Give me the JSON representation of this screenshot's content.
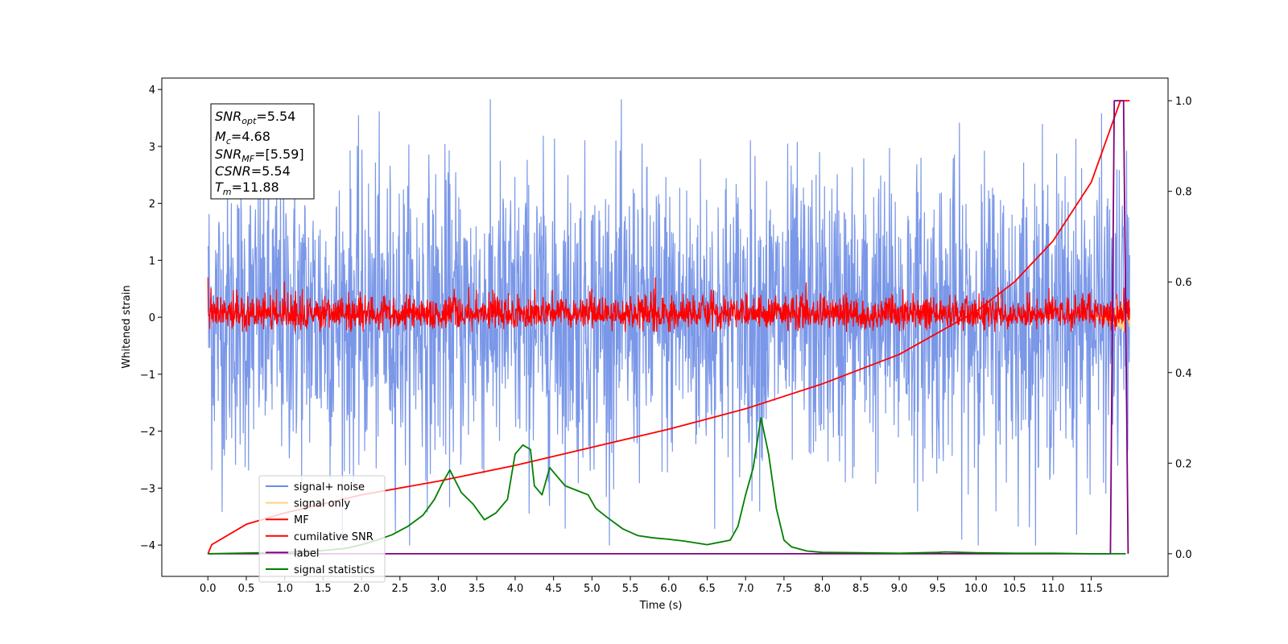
{
  "chart_data": {
    "type": "line",
    "title": "",
    "xlabel": "Time (s)",
    "ylabel": "Whitened strain",
    "xlim": [
      -0.6,
      12.5
    ],
    "ylim": [
      -4.55,
      4.2
    ],
    "y2lim": [
      -0.05,
      1.05
    ],
    "x_ticks": [
      0.0,
      0.5,
      1.0,
      1.5,
      2.0,
      2.5,
      3.0,
      3.5,
      4.0,
      4.5,
      5.0,
      5.5,
      6.0,
      6.5,
      7.0,
      7.5,
      8.0,
      8.5,
      9.0,
      9.5,
      10.0,
      10.5,
      11.0,
      11.5
    ],
    "x_tick_labels": [
      "0.0",
      "0.5",
      "1.0",
      "1.5",
      "2.0",
      "2.5",
      "3.0",
      "3.5",
      "4.0",
      "4.5",
      "5.0",
      "5.5",
      "6.0",
      "6.5",
      "7.0",
      "7.5",
      "8.0",
      "8.5",
      "9.0",
      "9.5",
      "10.0",
      "10.5",
      "11.0",
      "11.5"
    ],
    "y_ticks": [
      -4,
      -3,
      -2,
      -1,
      0,
      1,
      2,
      3,
      4
    ],
    "y_tick_labels": [
      "−4",
      "−3",
      "−2",
      "−1",
      "0",
      "1",
      "2",
      "3",
      "4"
    ],
    "y2_ticks": [
      0.0,
      0.2,
      0.4,
      0.6,
      0.8,
      1.0
    ],
    "y2_tick_labels": [
      "0.0",
      "0.2",
      "0.4",
      "0.6",
      "0.8",
      "1.0"
    ],
    "legend_position": "lower-left",
    "series": [
      {
        "name": "signal+ noise",
        "color": "#6b8ce6",
        "axis": "left",
        "kind": "noise",
        "x_range": [
          0.0,
          12.0
        ],
        "y_range": [
          -4.0,
          3.82
        ],
        "samples": 2400
      },
      {
        "name": "signal only",
        "color": "#ffd27f",
        "axis": "left",
        "kind": "chirp",
        "x_range": [
          11.5,
          12.0
        ],
        "y_range": [
          -0.35,
          0.35
        ]
      },
      {
        "name": "MF",
        "color": "#ff0000",
        "axis": "left",
        "kind": "noise",
        "x_range": [
          0.0,
          12.0
        ],
        "y_range": [
          -0.25,
          0.7
        ],
        "samples": 2400
      },
      {
        "name": "cumilative SNR",
        "color": "#ff0000",
        "axis": "right",
        "kind": "curve",
        "x": [
          0.0,
          0.05,
          0.5,
          1.0,
          1.5,
          2.0,
          3.0,
          4.0,
          5.0,
          6.0,
          7.0,
          8.0,
          9.0,
          10.0,
          10.5,
          11.0,
          11.5,
          11.88,
          12.0
        ],
        "y": [
          0.0,
          0.02,
          0.065,
          0.09,
          0.11,
          0.13,
          0.16,
          0.195,
          0.235,
          0.275,
          0.32,
          0.375,
          0.44,
          0.535,
          0.6,
          0.69,
          0.82,
          1.0,
          1.0
        ]
      },
      {
        "name": "label",
        "color": "#800080",
        "axis": "right",
        "kind": "curve",
        "x": [
          0.0,
          11.75,
          11.8,
          11.85,
          11.92,
          11.98
        ],
        "y": [
          0.0,
          0.0,
          1.0,
          1.0,
          1.0,
          0.0
        ]
      },
      {
        "name": "signal statistics",
        "color": "#008000",
        "axis": "right",
        "kind": "curve",
        "x": [
          0.0,
          1.0,
          1.5,
          1.8,
          2.0,
          2.2,
          2.4,
          2.6,
          2.8,
          2.95,
          3.05,
          3.15,
          3.3,
          3.45,
          3.6,
          3.75,
          3.9,
          4.0,
          4.1,
          4.2,
          4.25,
          4.35,
          4.45,
          4.55,
          4.65,
          4.8,
          4.95,
          5.05,
          5.2,
          5.4,
          5.6,
          5.8,
          6.0,
          6.2,
          6.5,
          6.8,
          6.9,
          7.0,
          7.1,
          7.2,
          7.3,
          7.4,
          7.5,
          7.6,
          7.8,
          8.0,
          8.5,
          9.0,
          9.5,
          9.6,
          10.0,
          10.5,
          11.0,
          11.5,
          11.95
        ],
        "y": [
          0.0,
          0.003,
          0.007,
          0.012,
          0.02,
          0.03,
          0.042,
          0.06,
          0.085,
          0.12,
          0.155,
          0.185,
          0.135,
          0.11,
          0.075,
          0.09,
          0.12,
          0.22,
          0.24,
          0.23,
          0.15,
          0.13,
          0.19,
          0.17,
          0.15,
          0.14,
          0.13,
          0.1,
          0.08,
          0.055,
          0.04,
          0.035,
          0.032,
          0.028,
          0.02,
          0.03,
          0.06,
          0.13,
          0.19,
          0.3,
          0.22,
          0.1,
          0.03,
          0.015,
          0.006,
          0.003,
          0.002,
          0.001,
          0.003,
          0.004,
          0.002,
          0.001,
          0.001,
          0.0,
          0.0
        ]
      }
    ],
    "annotations": {
      "snr_opt": {
        "name": "SNR",
        "sub": "opt",
        "value": "=5.54"
      },
      "mc": {
        "name": "M",
        "sub": "c",
        "value": "=4.68"
      },
      "snr_mf": {
        "name": "SNR",
        "sub": "MF",
        "value": "=[5.59]"
      },
      "csnr": {
        "name": "CSNR",
        "sub": "",
        "value": "=5.54"
      },
      "tm": {
        "name": "T",
        "sub": "m",
        "value": "=11.88"
      }
    }
  }
}
